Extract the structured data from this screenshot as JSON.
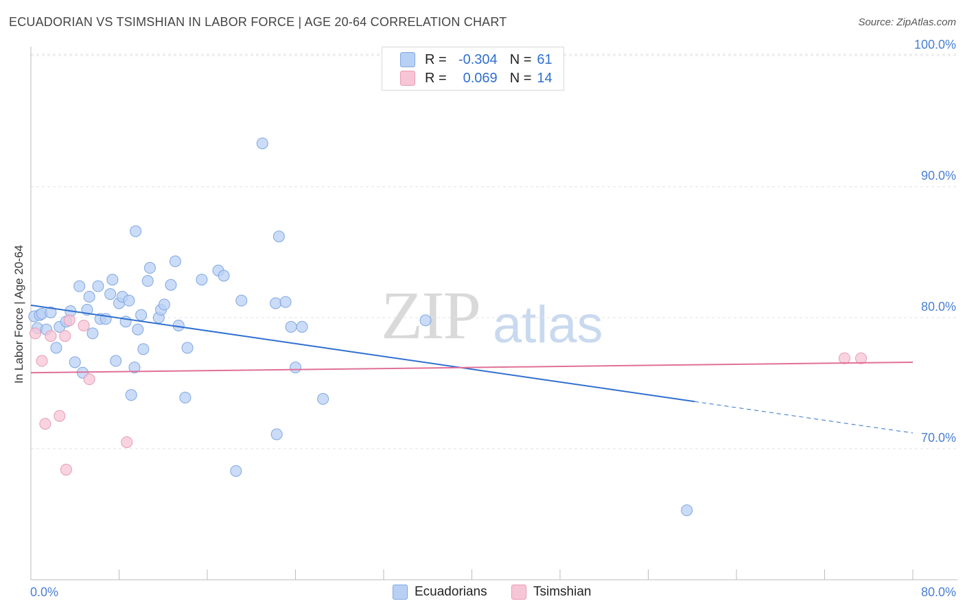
{
  "header": {
    "title": "ECUADORIAN VS TSIMSHIAN IN LABOR FORCE | AGE 20-64 CORRELATION CHART",
    "source": "Source: ZipAtlas.com"
  },
  "watermark": {
    "zip": "ZIP",
    "atlas": "atlas"
  },
  "legend_top": {
    "rows": [
      {
        "r_label": "R =",
        "r_value": "-0.304",
        "n_label": "N =",
        "n_value": "61"
      },
      {
        "r_label": "R =",
        "r_value": "0.069",
        "n_label": "N =",
        "n_value": "14"
      }
    ]
  },
  "legend_bottom": {
    "items": [
      "Ecuadorians",
      "Tsimshian"
    ]
  },
  "colors": {
    "ecuadorians_fill": "#b9d0f5",
    "ecuadorians_stroke": "#7ea6e0",
    "ecuadorians_line": "#2f6fcf",
    "tsimshian_fill": "#f7c6d6",
    "tsimshian_stroke": "#e79ab4",
    "tsimshian_line": "#e06f98",
    "tick": "#4a7fd4"
  },
  "chart_data": {
    "type": "scatter",
    "ylabel": "In Labor Force | Age 20-64",
    "xlim": [
      0,
      80
    ],
    "ylim": [
      60.5,
      104
    ],
    "x_tick_labels": [
      "0.0%",
      "80.0%"
    ],
    "y_ticks": [
      70,
      80,
      90,
      100
    ],
    "y_tick_labels": [
      "70.0%",
      "80.0%",
      "90.0%",
      "100.0%"
    ],
    "series": [
      {
        "name": "Ecuadorians",
        "points": [
          [
            0.3,
            80.1
          ],
          [
            0.6,
            79.2
          ],
          [
            0.8,
            80.2
          ],
          [
            1.0,
            80.3
          ],
          [
            1.4,
            79.1
          ],
          [
            1.8,
            80.4
          ],
          [
            2.3,
            77.7
          ],
          [
            2.6,
            79.3
          ],
          [
            3.2,
            79.7
          ],
          [
            3.6,
            80.5
          ],
          [
            4.0,
            76.6
          ],
          [
            4.4,
            82.4
          ],
          [
            4.7,
            75.8
          ],
          [
            5.1,
            80.6
          ],
          [
            5.3,
            81.6
          ],
          [
            5.6,
            78.8
          ],
          [
            6.1,
            82.4
          ],
          [
            6.3,
            79.9
          ],
          [
            6.8,
            79.9
          ],
          [
            7.2,
            81.8
          ],
          [
            7.4,
            82.9
          ],
          [
            7.7,
            76.7
          ],
          [
            8.0,
            81.1
          ],
          [
            8.3,
            81.6
          ],
          [
            8.6,
            79.7
          ],
          [
            8.9,
            81.3
          ],
          [
            9.1,
            74.1
          ],
          [
            9.4,
            76.2
          ],
          [
            9.5,
            86.6
          ],
          [
            9.7,
            79.1
          ],
          [
            10.0,
            80.2
          ],
          [
            10.2,
            77.6
          ],
          [
            10.6,
            82.8
          ],
          [
            10.8,
            83.8
          ],
          [
            11.6,
            80.0
          ],
          [
            11.8,
            80.6
          ],
          [
            12.1,
            81.0
          ],
          [
            12.7,
            82.5
          ],
          [
            13.1,
            84.3
          ],
          [
            13.4,
            79.4
          ],
          [
            14.0,
            73.9
          ],
          [
            14.2,
            77.7
          ],
          [
            15.5,
            82.9
          ],
          [
            17.0,
            83.6
          ],
          [
            17.5,
            83.2
          ],
          [
            18.6,
            68.3
          ],
          [
            19.1,
            81.3
          ],
          [
            21.0,
            93.3
          ],
          [
            22.2,
            81.1
          ],
          [
            22.3,
            71.1
          ],
          [
            22.5,
            86.2
          ],
          [
            23.1,
            81.2
          ],
          [
            23.6,
            79.3
          ],
          [
            24.0,
            76.2
          ],
          [
            24.6,
            79.3
          ],
          [
            26.5,
            73.8
          ],
          [
            35.8,
            79.8
          ],
          [
            59.5,
            65.3
          ]
        ]
      },
      {
        "name": "Tsimshian",
        "points": [
          [
            0.4,
            78.8
          ],
          [
            1.0,
            76.7
          ],
          [
            1.3,
            71.9
          ],
          [
            1.8,
            78.6
          ],
          [
            2.6,
            72.5
          ],
          [
            3.1,
            78.6
          ],
          [
            3.2,
            68.4
          ],
          [
            3.5,
            79.8
          ],
          [
            4.8,
            79.4
          ],
          [
            5.3,
            75.3
          ],
          [
            8.7,
            70.5
          ],
          [
            73.8,
            76.9
          ],
          [
            75.3,
            76.9
          ]
        ]
      }
    ],
    "trendlines": [
      {
        "series": "Ecuadorians",
        "x": [
          0,
          60.2
        ],
        "y": [
          80.95,
          73.6
        ],
        "dashed_to": [
          80,
          71.2
        ]
      },
      {
        "series": "Tsimshian",
        "x": [
          0,
          80
        ],
        "y": [
          75.8,
          76.6
        ]
      }
    ]
  }
}
